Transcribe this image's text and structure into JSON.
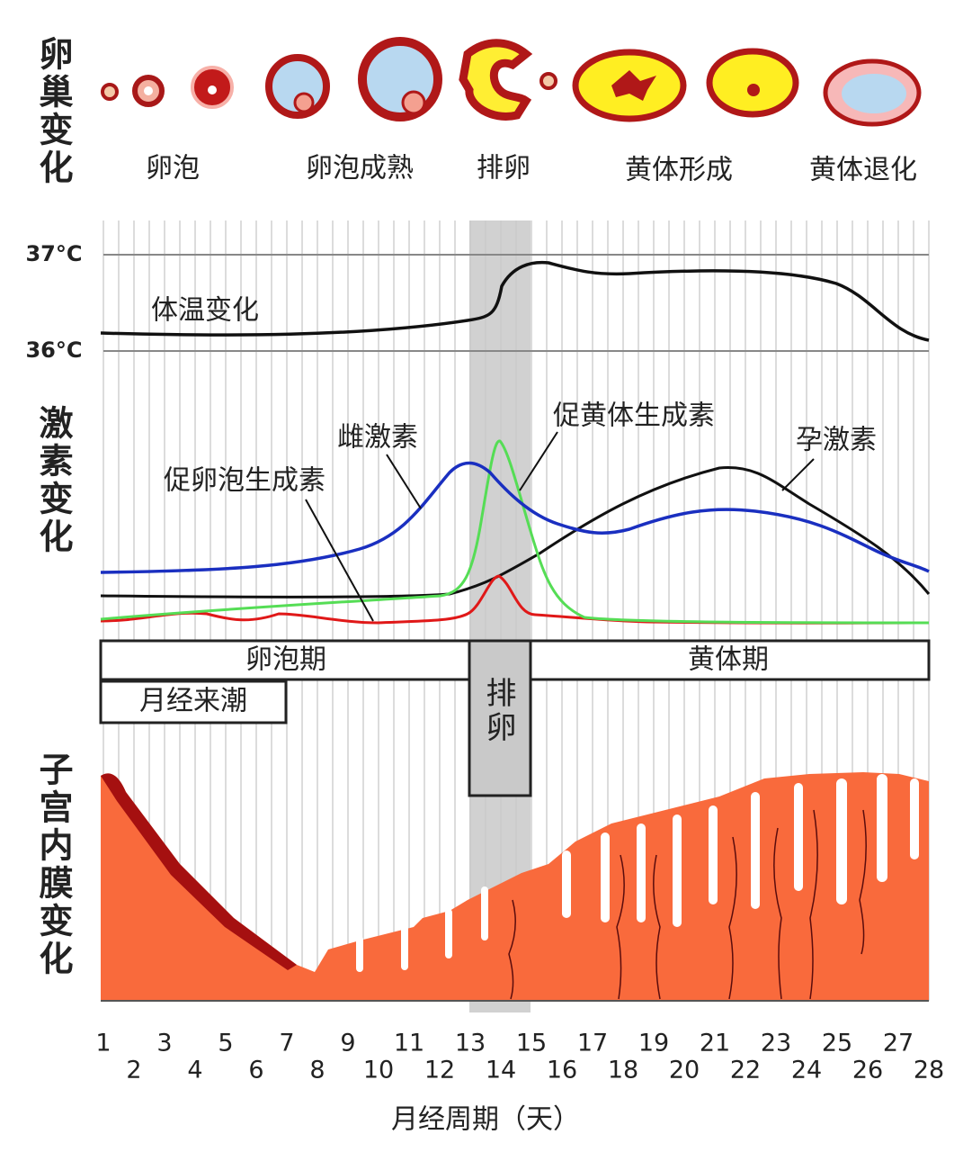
{
  "ovary": {
    "title": "卵巢变化",
    "stages": [
      "卵泡",
      "卵泡成熟",
      "排卵",
      "黄体形成",
      "黄体退化"
    ]
  },
  "temperature": {
    "title": "体温变化",
    "ticks": [
      "37°C",
      "36°C"
    ]
  },
  "hormones": {
    "title": "激素变化",
    "labels": [
      "雌激素",
      "促黄体生成素",
      "促卵泡生成素",
      "孕激素"
    ]
  },
  "phases": {
    "follicular": "卵泡期",
    "luteal": "黄体期",
    "menstruation": "月经来潮",
    "ovulation": "排卵"
  },
  "endometrium": {
    "title": "子宫内膜变化"
  },
  "x_axis": {
    "title": "月经周期（天）",
    "days": [
      "1",
      "2",
      "3",
      "4",
      "5",
      "6",
      "7",
      "8",
      "9",
      "10",
      "11",
      "12",
      "13",
      "14",
      "15",
      "16",
      "17",
      "18",
      "19",
      "20",
      "21",
      "22",
      "23",
      "24",
      "25",
      "26",
      "27",
      "28"
    ]
  }
}
